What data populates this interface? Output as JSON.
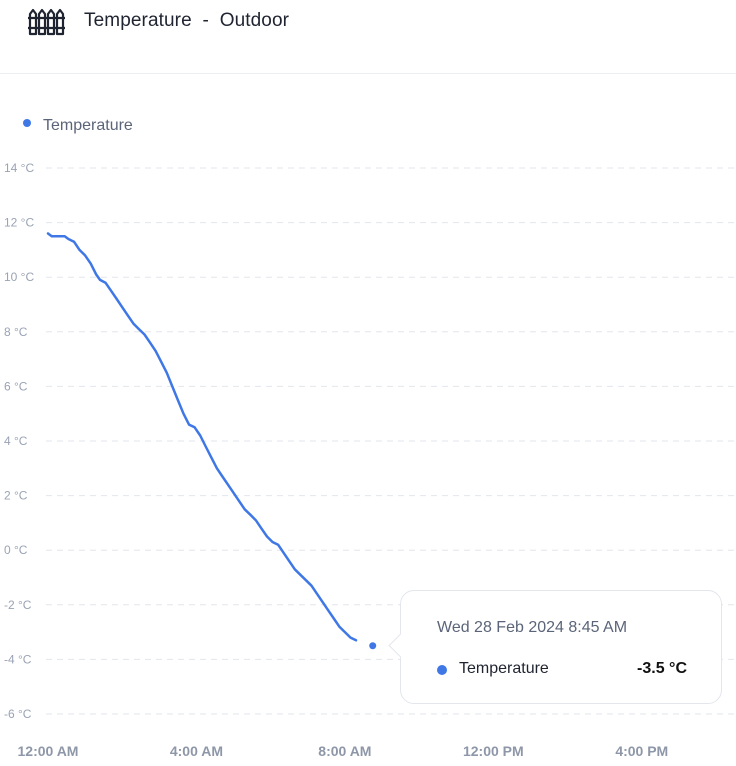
{
  "header": {
    "icon": "fence-icon",
    "title": "Temperature  -  Outdoor"
  },
  "colors": {
    "series": "#3f78e6",
    "grid": "#e3e6ec",
    "axis_text": "#9aa3b5",
    "x_axis_text": "#8e97a8"
  },
  "chart_data": {
    "type": "line",
    "title": "",
    "legend": {
      "position": "top-left",
      "entries": [
        "Temperature"
      ]
    },
    "grid": true,
    "y_unit": "°C",
    "ylim": [
      -6,
      14
    ],
    "y_ticks": [
      14,
      12,
      10,
      8,
      6,
      4,
      2,
      0,
      -2,
      -4,
      -6
    ],
    "y_tick_labels": [
      "14 °C",
      "12 °C",
      "10 °C",
      "8 °C",
      "6 °C",
      "4 °C",
      "2 °C",
      "0 °C",
      "-2 °C",
      "-4 °C",
      "-6 °C"
    ],
    "x_ticks": [
      0,
      4,
      8,
      12,
      16
    ],
    "x_tick_labels": [
      "12:00 AM",
      "4:00 AM",
      "8:00 AM",
      "12:00 PM",
      "4:00 PM"
    ],
    "xlim": [
      0,
      18
    ],
    "series": [
      {
        "name": "Temperature",
        "points": [
          [
            0.0,
            11.6
          ],
          [
            0.1,
            11.5
          ],
          [
            0.25,
            11.5
          ],
          [
            0.45,
            11.5
          ],
          [
            0.55,
            11.4
          ],
          [
            0.7,
            11.3
          ],
          [
            0.85,
            11.0
          ],
          [
            1.0,
            10.8
          ],
          [
            1.15,
            10.5
          ],
          [
            1.3,
            10.1
          ],
          [
            1.4,
            9.9
          ],
          [
            1.55,
            9.8
          ],
          [
            1.7,
            9.5
          ],
          [
            1.85,
            9.2
          ],
          [
            2.0,
            8.9
          ],
          [
            2.15,
            8.6
          ],
          [
            2.3,
            8.3
          ],
          [
            2.45,
            8.1
          ],
          [
            2.6,
            7.9
          ],
          [
            2.75,
            7.6
          ],
          [
            2.9,
            7.3
          ],
          [
            3.05,
            6.9
          ],
          [
            3.2,
            6.5
          ],
          [
            3.35,
            6.0
          ],
          [
            3.5,
            5.5
          ],
          [
            3.65,
            5.0
          ],
          [
            3.8,
            4.6
          ],
          [
            3.95,
            4.5
          ],
          [
            4.1,
            4.2
          ],
          [
            4.25,
            3.8
          ],
          [
            4.4,
            3.4
          ],
          [
            4.55,
            3.0
          ],
          [
            4.7,
            2.7
          ],
          [
            4.85,
            2.4
          ],
          [
            5.0,
            2.1
          ],
          [
            5.15,
            1.8
          ],
          [
            5.3,
            1.5
          ],
          [
            5.45,
            1.3
          ],
          [
            5.6,
            1.1
          ],
          [
            5.75,
            0.8
          ],
          [
            5.9,
            0.5
          ],
          [
            6.05,
            0.3
          ],
          [
            6.2,
            0.2
          ],
          [
            6.35,
            -0.1
          ],
          [
            6.5,
            -0.4
          ],
          [
            6.65,
            -0.7
          ],
          [
            6.8,
            -0.9
          ],
          [
            6.95,
            -1.1
          ],
          [
            7.1,
            -1.3
          ],
          [
            7.25,
            -1.6
          ],
          [
            7.4,
            -1.9
          ],
          [
            7.55,
            -2.2
          ],
          [
            7.7,
            -2.5
          ],
          [
            7.85,
            -2.8
          ],
          [
            8.0,
            -3.0
          ],
          [
            8.15,
            -3.2
          ],
          [
            8.3,
            -3.3
          ]
        ]
      }
    ],
    "highlight": {
      "x": 8.75,
      "value": -3.5
    }
  },
  "tooltip": {
    "date": "Wed 28 Feb 2024 8:45 AM",
    "series_name": "Temperature",
    "value": "-3.5 °C"
  }
}
